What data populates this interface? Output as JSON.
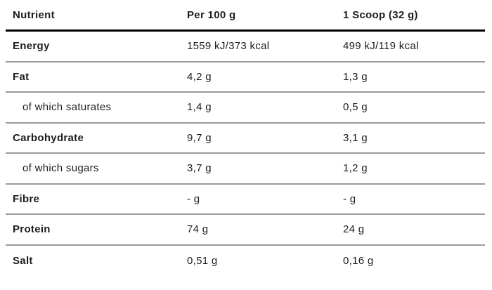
{
  "table": {
    "columns": [
      {
        "label": "Nutrient"
      },
      {
        "label": "Per 100 g"
      },
      {
        "label": "1 Scoop (32 g)"
      }
    ],
    "rows": [
      {
        "nutrient": "Energy",
        "per_100g": "1559 kJ/373 kcal",
        "per_scoop": "499 kJ/119 kcal"
      },
      {
        "nutrient": "Fat",
        "per_100g": "4,2 g",
        "per_scoop": "1,3 g"
      },
      {
        "nutrient": "of which saturates",
        "per_100g": "1,4 g",
        "per_scoop": "0,5 g"
      },
      {
        "nutrient": "Carbohydrate",
        "per_100g": "9,7 g",
        "per_scoop": "3,1 g"
      },
      {
        "nutrient": "of which sugars",
        "per_100g": "3,7 g",
        "per_scoop": "1,2 g"
      },
      {
        "nutrient": "Fibre",
        "per_100g": "- g",
        "per_scoop": "- g"
      },
      {
        "nutrient": "Protein",
        "per_100g": "74 g",
        "per_scoop": "24 g"
      },
      {
        "nutrient": "Salt",
        "per_100g": "0,51 g",
        "per_scoop": "0,16 g"
      }
    ],
    "colors": {
      "text": "#1d1d1b",
      "header_rule": "#000000",
      "row_rule": "#9b9b9b",
      "background": "#ffffff"
    }
  }
}
